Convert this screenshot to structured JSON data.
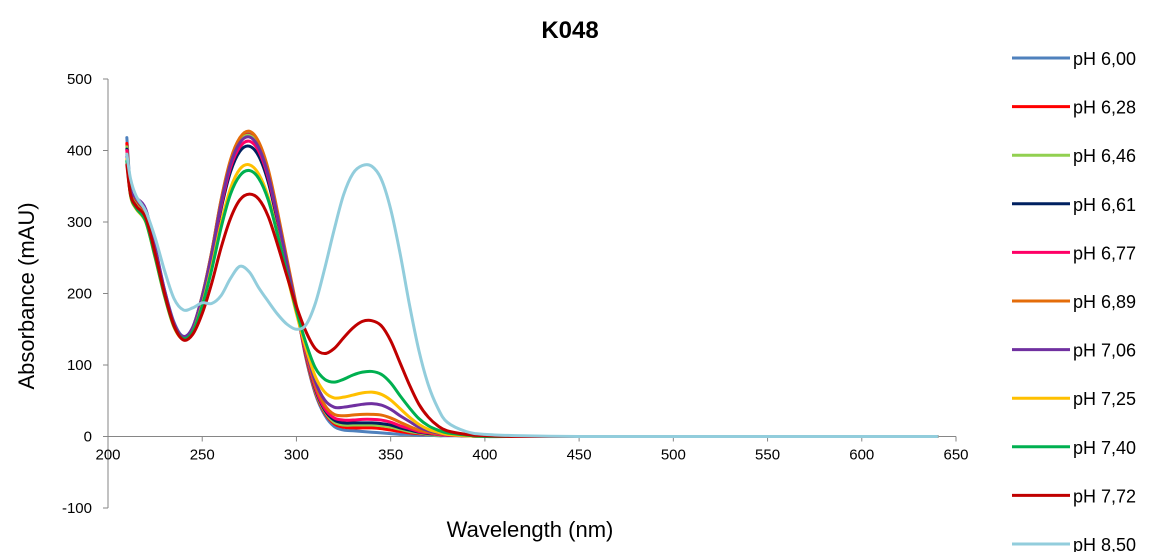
{
  "chart_data": {
    "type": "line",
    "title": "K048",
    "xlabel": "Wavelength (nm)",
    "ylabel": "Absorbance (mAU)",
    "xlim": [
      200,
      650
    ],
    "ylim": [
      -100,
      500
    ],
    "xticks": [
      200,
      250,
      300,
      350,
      400,
      450,
      500,
      550,
      600,
      650
    ],
    "yticks": [
      -100,
      0,
      100,
      200,
      300,
      400,
      500
    ],
    "grid": false,
    "legend_position": "right",
    "x": [
      210,
      212,
      215,
      220,
      225,
      230,
      235,
      240,
      245,
      250,
      255,
      260,
      265,
      270,
      275,
      280,
      285,
      290,
      295,
      300,
      305,
      310,
      315,
      320,
      325,
      330,
      335,
      340,
      345,
      350,
      355,
      360,
      365,
      370,
      375,
      380,
      390,
      400,
      420,
      450,
      500,
      550,
      600,
      640
    ],
    "series": [
      {
        "name": "pH 6,00",
        "color": "#4f81bd",
        "values": [
          418,
          348,
          330,
          312,
          262,
          205,
          160,
          140,
          153,
          197,
          258,
          330,
          385,
          415,
          423,
          408,
          370,
          310,
          245,
          180,
          110,
          60,
          30,
          14,
          9,
          8,
          7,
          6,
          5,
          4,
          3,
          3,
          2,
          2,
          1,
          1,
          1,
          0,
          0,
          0,
          0,
          0,
          0,
          0
        ]
      },
      {
        "name": "pH 6,28",
        "color": "#ff0000",
        "values": [
          410,
          344,
          326,
          308,
          258,
          202,
          158,
          139,
          152,
          196,
          257,
          329,
          384,
          414,
          422,
          407,
          369,
          309,
          244,
          180,
          112,
          62,
          33,
          18,
          13,
          12,
          12,
          12,
          11,
          9,
          7,
          5,
          4,
          3,
          2,
          2,
          1,
          0,
          0,
          0,
          0,
          0,
          0,
          0
        ]
      },
      {
        "name": "pH 6,46",
        "color": "#92d050",
        "values": [
          405,
          342,
          324,
          306,
          256,
          200,
          156,
          138,
          151,
          195,
          256,
          328,
          383,
          413,
          421,
          406,
          368,
          308,
          243,
          180,
          114,
          64,
          35,
          20,
          16,
          16,
          16,
          16,
          15,
          13,
          10,
          7,
          5,
          3,
          2,
          2,
          1,
          0,
          0,
          0,
          0,
          0,
          0,
          0
        ]
      },
      {
        "name": "pH 6,61",
        "color": "#002060",
        "values": [
          402,
          340,
          322,
          304,
          254,
          199,
          155,
          137,
          150,
          192,
          250,
          318,
          370,
          399,
          406,
          392,
          356,
          300,
          238,
          178,
          115,
          66,
          37,
          23,
          19,
          19,
          19,
          19,
          18,
          16,
          12,
          9,
          6,
          4,
          3,
          2,
          1,
          0,
          0,
          0,
          0,
          0,
          0,
          0
        ]
      },
      {
        "name": "pH 6,77",
        "color": "#ff0066",
        "values": [
          400,
          339,
          321,
          303,
          253,
          198,
          155,
          137,
          150,
          193,
          252,
          322,
          376,
          405,
          413,
          399,
          362,
          304,
          240,
          178,
          116,
          68,
          39,
          26,
          23,
          23,
          24,
          24,
          23,
          20,
          15,
          11,
          7,
          5,
          3,
          2,
          1,
          0,
          0,
          0,
          0,
          0,
          0,
          0
        ]
      },
      {
        "name": "pH 6,89",
        "color": "#e46c0a",
        "values": [
          395,
          338,
          320,
          302,
          253,
          198,
          155,
          138,
          152,
          197,
          258,
          331,
          387,
          418,
          427,
          412,
          374,
          314,
          248,
          183,
          120,
          72,
          44,
          31,
          29,
          30,
          31,
          31,
          30,
          26,
          20,
          14,
          9,
          6,
          4,
          3,
          1,
          0,
          0,
          0,
          0,
          0,
          0,
          0
        ]
      },
      {
        "name": "pH 7,06",
        "color": "#7030a0",
        "values": [
          392,
          345,
          334,
          318,
          265,
          205,
          158,
          140,
          153,
          196,
          255,
          326,
          381,
          411,
          419,
          404,
          366,
          307,
          242,
          179,
          122,
          77,
          51,
          41,
          41,
          43,
          45,
          46,
          44,
          38,
          29,
          21,
          13,
          8,
          5,
          3,
          1,
          0,
          0,
          0,
          0,
          0,
          0,
          0
        ]
      },
      {
        "name": "pH 7,25",
        "color": "#ffc000",
        "values": [
          388,
          336,
          318,
          300,
          250,
          196,
          153,
          136,
          147,
          185,
          237,
          298,
          347,
          374,
          380,
          367,
          335,
          283,
          226,
          172,
          124,
          84,
          62,
          54,
          55,
          58,
          61,
          62,
          59,
          51,
          39,
          27,
          17,
          10,
          6,
          3,
          1,
          0,
          0,
          0,
          0,
          0,
          0,
          0
        ]
      },
      {
        "name": "pH 7,40",
        "color": "#00b050",
        "values": [
          385,
          337,
          319,
          301,
          251,
          197,
          154,
          137,
          147,
          183,
          233,
          292,
          339,
          365,
          372,
          361,
          331,
          282,
          228,
          176,
          131,
          96,
          80,
          76,
          80,
          86,
          90,
          91,
          87,
          75,
          57,
          40,
          25,
          15,
          9,
          5,
          2,
          0,
          0,
          0,
          0,
          0,
          0,
          0
        ]
      },
      {
        "name": "pH 7,72",
        "color": "#c00000",
        "values": [
          380,
          338,
          322,
          306,
          256,
          200,
          155,
          135,
          143,
          172,
          214,
          264,
          305,
          331,
          339,
          332,
          308,
          268,
          224,
          182,
          147,
          123,
          116,
          123,
          138,
          152,
          161,
          162,
          155,
          134,
          103,
          72,
          45,
          27,
          15,
          8,
          3,
          1,
          0,
          0,
          0,
          0,
          0,
          0
        ]
      },
      {
        "name": "pH 8,50",
        "color": "#92cddc",
        "values": [
          395,
          360,
          336,
          315,
          278,
          232,
          193,
          177,
          180,
          187,
          186,
          197,
          221,
          238,
          230,
          208,
          189,
          171,
          157,
          150,
          156,
          186,
          235,
          289,
          338,
          368,
          379,
          378,
          360,
          318,
          256,
          184,
          120,
          72,
          40,
          20,
          7,
          3,
          1,
          0,
          0,
          0,
          0,
          0
        ]
      }
    ]
  }
}
